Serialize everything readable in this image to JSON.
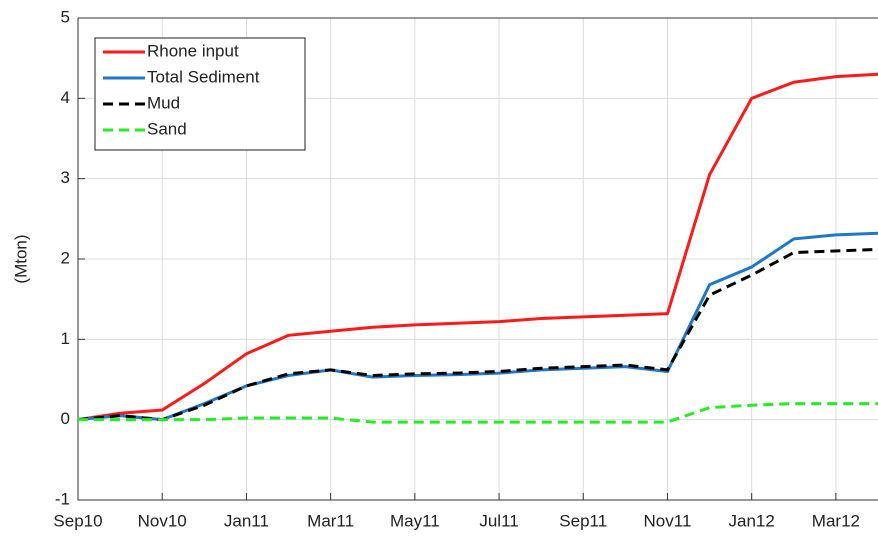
{
  "chart_data": {
    "type": "line",
    "y_label": "(Mton)",
    "x": [
      "2010-09",
      "2010-10",
      "2010-11",
      "2010-12",
      "2011-01",
      "2011-02",
      "2011-03",
      "2011-04",
      "2011-05",
      "2011-06",
      "2011-07",
      "2011-08",
      "2011-09",
      "2011-10",
      "2011-11",
      "2011-12",
      "2012-01",
      "2012-02",
      "2012-03",
      "2012-04"
    ],
    "series": [
      {
        "name": "Rhone input",
        "color": "#ff1a1a",
        "style": "solid",
        "values": [
          0,
          0.08,
          0.12,
          0.45,
          0.82,
          1.05,
          1.1,
          1.15,
          1.18,
          1.2,
          1.22,
          1.26,
          1.28,
          1.3,
          1.32,
          3.05,
          4.0,
          4.2,
          4.27,
          4.3
        ]
      },
      {
        "name": "Total Sediment",
        "color": "#1f77c8",
        "style": "solid",
        "values": [
          0,
          0.05,
          0.0,
          0.2,
          0.42,
          0.55,
          0.62,
          0.53,
          0.55,
          0.56,
          0.58,
          0.62,
          0.64,
          0.66,
          0.6,
          1.68,
          1.9,
          2.25,
          2.3,
          2.32
        ]
      },
      {
        "name": "Mud",
        "color": "#000000",
        "style": "dashed",
        "values": [
          0,
          0.05,
          0.0,
          0.18,
          0.42,
          0.57,
          0.62,
          0.55,
          0.57,
          0.58,
          0.6,
          0.64,
          0.66,
          0.68,
          0.62,
          1.55,
          1.8,
          2.08,
          2.1,
          2.12
        ]
      },
      {
        "name": "Sand",
        "color": "#22ee22",
        "style": "dashed",
        "values": [
          0,
          0,
          0,
          0,
          0.02,
          0.02,
          0.02,
          -0.03,
          -0.03,
          -0.03,
          -0.03,
          -0.03,
          -0.03,
          -0.03,
          -0.03,
          0.15,
          0.18,
          0.2,
          0.2,
          0.2
        ]
      }
    ],
    "xlim": [
      "2010-09",
      "2012-04"
    ],
    "xticks": [
      {
        "value": "2010-09",
        "label": "Sep10"
      },
      {
        "value": "2010-11",
        "label": "Nov10"
      },
      {
        "value": "2011-01",
        "label": "Jan11"
      },
      {
        "value": "2011-03",
        "label": "Mar11"
      },
      {
        "value": "2011-05",
        "label": "May11"
      },
      {
        "value": "2011-07",
        "label": "Jul11"
      },
      {
        "value": "2011-09",
        "label": "Sep11"
      },
      {
        "value": "2011-11",
        "label": "Nov11"
      },
      {
        "value": "2012-01",
        "label": "Jan12"
      },
      {
        "value": "2012-03",
        "label": "Mar12"
      }
    ],
    "ylim": [
      -1,
      5
    ],
    "yticks": [
      -1,
      0,
      1,
      2,
      3,
      4,
      5
    ],
    "grid": true,
    "legend": "top-left"
  }
}
